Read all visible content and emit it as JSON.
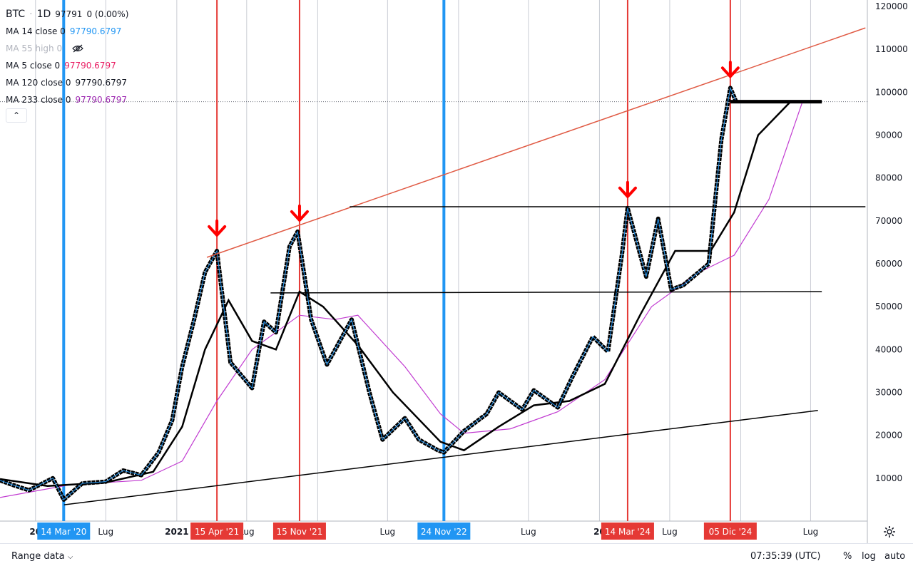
{
  "legend": {
    "symbol": "BTC",
    "interval": "1D",
    "price": "97791",
    "change": "0 (0.00%)",
    "indicators": [
      {
        "name": "MA 14 close 0",
        "value": "97790.6797",
        "color": "#2196f3",
        "hidden": false
      },
      {
        "name": "MA 55 high 0",
        "value": "",
        "color": "#b2b5be",
        "hidden": true
      },
      {
        "name": "MA 5 close 0",
        "value": "97790.6797",
        "color": "#e91e63",
        "hidden": false
      },
      {
        "name": "MA 120 close 0",
        "value": "97790.6797",
        "color": "#131722",
        "hidden": false
      },
      {
        "name": "MA 233 close 0",
        "value": "97790.6797",
        "color": "#9c27b0",
        "hidden": false
      }
    ]
  },
  "bottom_bar": {
    "range_label": "Range data",
    "clock": "07:35:39 (UTC)",
    "percent_label": "%",
    "log_label": "log",
    "auto_label": "auto"
  },
  "chart_data": {
    "type": "line",
    "y_axis": {
      "scale": "linear",
      "ticks": [
        10000,
        20000,
        30000,
        40000,
        50000,
        60000,
        70000,
        80000,
        90000,
        100000,
        110000,
        120000
      ],
      "range": [
        0,
        121500
      ]
    },
    "x_axis": {
      "range": [
        "2019-10-01",
        "2025-11-25"
      ],
      "tick_labels": [
        {
          "date": "2020-01-01",
          "label": "20"
        },
        {
          "date": "2020-07-01",
          "label": "Lug"
        },
        {
          "date": "2021-01-01",
          "label": "2021"
        },
        {
          "date": "2021-07-01",
          "label": "Lug"
        },
        {
          "date": "2022-07-01",
          "label": "Lug"
        },
        {
          "date": "2023-07-01",
          "label": "Lug"
        },
        {
          "date": "2024-01-01",
          "label": "20"
        },
        {
          "date": "2024-07-01",
          "label": "Lug"
        },
        {
          "date": "2025-07-01",
          "label": "Lug"
        }
      ],
      "grid_dates": [
        "2020-01-01",
        "2020-07-01",
        "2021-01-01",
        "2021-07-01",
        "2022-01-01",
        "2022-07-01",
        "2023-01-01",
        "2023-07-01",
        "2024-01-01",
        "2024-07-01",
        "2025-01-01",
        "2025-07-01"
      ]
    },
    "price_series": {
      "name": "BTC",
      "points": [
        [
          "2019-10-01",
          9500
        ],
        [
          "2019-11-01",
          8500
        ],
        [
          "2019-12-15",
          7200
        ],
        [
          "2020-02-15",
          10000
        ],
        [
          "2020-03-14",
          5000
        ],
        [
          "2020-05-01",
          8800
        ],
        [
          "2020-07-01",
          9200
        ],
        [
          "2020-08-15",
          11800
        ],
        [
          "2020-10-01",
          10700
        ],
        [
          "2020-11-15",
          16000
        ],
        [
          "2020-12-20",
          23500
        ],
        [
          "2021-01-15",
          36000
        ],
        [
          "2021-02-15",
          47000
        ],
        [
          "2021-03-15",
          58000
        ],
        [
          "2021-04-15",
          63000
        ],
        [
          "2021-05-20",
          37000
        ],
        [
          "2021-07-15",
          31000
        ],
        [
          "2021-08-15",
          46500
        ],
        [
          "2021-09-15",
          44000
        ],
        [
          "2021-10-20",
          64000
        ],
        [
          "2021-11-10",
          67500
        ],
        [
          "2021-12-15",
          47000
        ],
        [
          "2022-01-25",
          36500
        ],
        [
          "2022-03-30",
          47000
        ],
        [
          "2022-05-15",
          30000
        ],
        [
          "2022-06-18",
          19000
        ],
        [
          "2022-08-15",
          24000
        ],
        [
          "2022-09-20",
          19000
        ],
        [
          "2022-11-09",
          16500
        ],
        [
          "2022-11-24",
          16000
        ],
        [
          "2023-01-15",
          21000
        ],
        [
          "2023-03-15",
          25000
        ],
        [
          "2023-04-15",
          30000
        ],
        [
          "2023-06-15",
          26000
        ],
        [
          "2023-07-15",
          30500
        ],
        [
          "2023-09-15",
          26500
        ],
        [
          "2023-10-25",
          34000
        ],
        [
          "2023-12-15",
          43000
        ],
        [
          "2024-01-23",
          39500
        ],
        [
          "2024-02-28",
          62000
        ],
        [
          "2024-03-14",
          73000
        ],
        [
          "2024-05-01",
          57000
        ],
        [
          "2024-06-01",
          70500
        ],
        [
          "2024-07-05",
          54000
        ],
        [
          "2024-08-05",
          55000
        ],
        [
          "2024-10-10",
          60000
        ],
        [
          "2024-11-12",
          89000
        ],
        [
          "2024-12-05",
          101000
        ],
        [
          "2024-12-20",
          97791
        ]
      ]
    },
    "ma_black": {
      "name": "MA 120",
      "points": [
        [
          "2019-10-01",
          9800
        ],
        [
          "2020-02-01",
          8200
        ],
        [
          "2020-07-01",
          9000
        ],
        [
          "2020-11-01",
          11500
        ],
        [
          "2021-01-15",
          22000
        ],
        [
          "2021-03-15",
          40000
        ],
        [
          "2021-05-15",
          51500
        ],
        [
          "2021-07-15",
          42000
        ],
        [
          "2021-09-15",
          40000
        ],
        [
          "2021-11-15",
          53500
        ],
        [
          "2022-01-15",
          50000
        ],
        [
          "2022-04-15",
          41000
        ],
        [
          "2022-07-15",
          30000
        ],
        [
          "2022-11-15",
          18500
        ],
        [
          "2023-01-15",
          16500
        ],
        [
          "2023-04-15",
          22000
        ],
        [
          "2023-07-15",
          27000
        ],
        [
          "2023-10-15",
          28000
        ],
        [
          "2024-01-15",
          32000
        ],
        [
          "2024-04-15",
          48000
        ],
        [
          "2024-07-15",
          63000
        ],
        [
          "2024-10-15",
          63000
        ],
        [
          "2024-12-15",
          72000
        ],
        [
          "2025-02-15",
          90000
        ],
        [
          "2025-05-10",
          97791
        ]
      ]
    },
    "ma_purple": {
      "name": "MA 233",
      "points": [
        [
          "2019-10-01",
          5500
        ],
        [
          "2020-04-01",
          8500
        ],
        [
          "2020-10-01",
          9500
        ],
        [
          "2021-01-15",
          14000
        ],
        [
          "2021-04-15",
          28000
        ],
        [
          "2021-07-15",
          40000
        ],
        [
          "2021-11-15",
          48000
        ],
        [
          "2022-02-15",
          47000
        ],
        [
          "2022-04-15",
          48000
        ],
        [
          "2022-08-15",
          36000
        ],
        [
          "2022-11-15",
          25000
        ],
        [
          "2023-01-15",
          20500
        ],
        [
          "2023-05-15",
          21500
        ],
        [
          "2023-09-15",
          25500
        ],
        [
          "2024-01-15",
          33000
        ],
        [
          "2024-05-15",
          50000
        ],
        [
          "2024-09-15",
          58000
        ],
        [
          "2024-12-15",
          62000
        ],
        [
          "2025-03-15",
          75000
        ],
        [
          "2025-06-10",
          97791
        ]
      ]
    },
    "current_price": 97791,
    "trendlines": [
      {
        "color": "#e05a44",
        "width": 1.5,
        "from": [
          "2021-03-20",
          61500
        ],
        "to": [
          "2025-11-20",
          115000
        ]
      },
      {
        "color": "#000000",
        "width": 1.5,
        "from": [
          "2020-03-15",
          3800
        ],
        "to": [
          "2025-07-20",
          25800
        ]
      },
      {
        "color": "#000000",
        "width": 1.5,
        "from": [
          "2022-03-25",
          73300
        ],
        "to": [
          "2025-11-20",
          73300
        ]
      },
      {
        "color": "#000000",
        "width": 1.5,
        "from": [
          "2021-09-01",
          53200
        ],
        "to": [
          "2025-07-30",
          53500
        ]
      },
      {
        "color": "#000000",
        "width": 5,
        "from": [
          "2024-12-05",
          97800
        ],
        "to": [
          "2025-07-30",
          97800
        ]
      }
    ],
    "vertical_markers": [
      {
        "date": "2020-03-14",
        "label": "14 Mar '20",
        "color": "#2196f3",
        "width": 4
      },
      {
        "date": "2021-04-15",
        "label": "15 Apr '21",
        "color": "#e53935",
        "width": 2
      },
      {
        "date": "2021-11-15",
        "label": "15 Nov '21",
        "color": "#e53935",
        "width": 2
      },
      {
        "date": "2022-11-24",
        "label": "24 Nov '22",
        "color": "#2196f3",
        "width": 4
      },
      {
        "date": "2024-03-14",
        "label": "14 Mar '24",
        "color": "#e53935",
        "width": 2
      },
      {
        "date": "2024-12-05",
        "label": "05 Dic '24",
        "color": "#e53935",
        "width": 2
      }
    ],
    "arrows": [
      {
        "date": "2021-04-15",
        "value": 67000
      },
      {
        "date": "2021-11-15",
        "value": 70500
      },
      {
        "date": "2024-03-14",
        "value": 76000
      },
      {
        "date": "2024-12-05",
        "value": 104000
      }
    ]
  }
}
